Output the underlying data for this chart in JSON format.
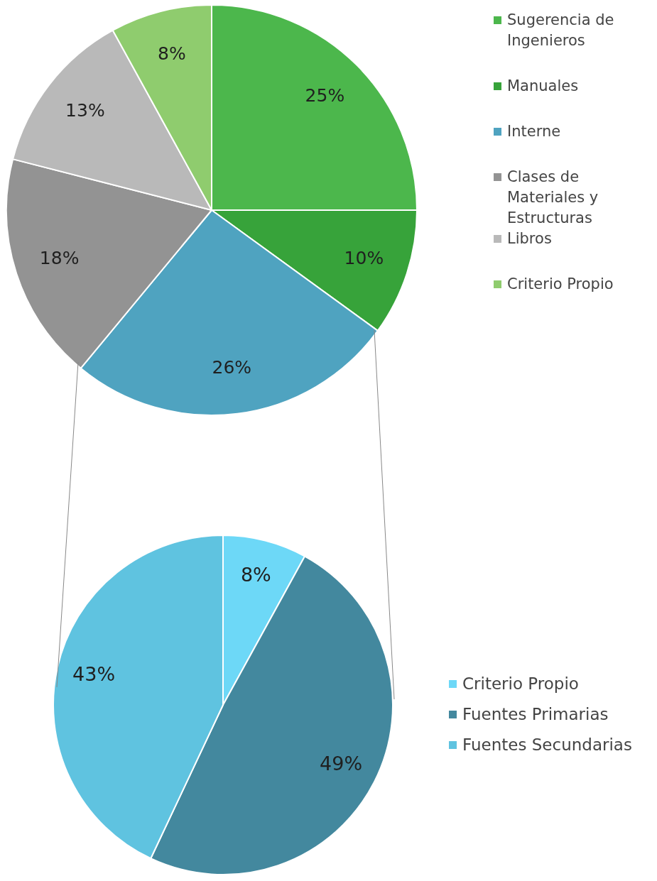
{
  "chart_data": [
    {
      "type": "pie",
      "categories": [
        "Sugerencia de Ingenieros",
        "Manuales",
        "Interne",
        "Clases de Materiales y Estructuras",
        "Libros",
        "Criterio Propio"
      ],
      "values": [
        25,
        10,
        26,
        18,
        13,
        8
      ],
      "value_labels": [
        "25%",
        "10%",
        "26%",
        "18%",
        "13%",
        "8%"
      ],
      "colors": [
        "#4cb74c",
        "#37a33a",
        "#4fa3c0",
        "#939393",
        "#b9b9b9",
        "#8fcc6e"
      ],
      "legend": "right"
    },
    {
      "type": "pie",
      "categories": [
        "Criterio Propio",
        "Fuentes Primarias",
        "Fuentes Secundarias"
      ],
      "values": [
        8,
        49,
        43
      ],
      "value_labels": [
        "8%",
        "49%",
        "43%"
      ],
      "colors": [
        "#6dd8f7",
        "#43889e",
        "#5fc3e0"
      ],
      "legend": "right"
    }
  ]
}
